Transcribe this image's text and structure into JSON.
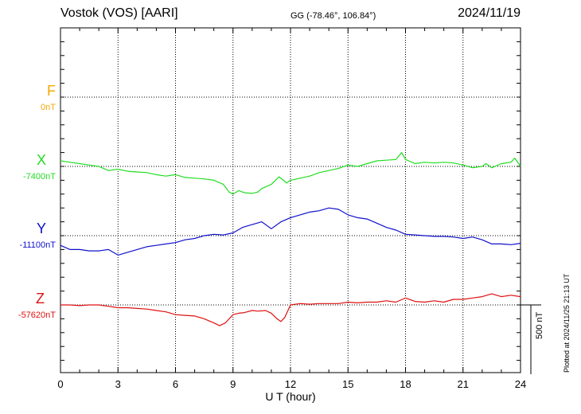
{
  "header": {
    "station": "Vostok (VOS)  [AARI]",
    "coordinates": "GG (-78.46°, 106.84°)",
    "date": "2024/11/19"
  },
  "plotted_note": "Plotted at 2024/11/25 21:13 UT",
  "chart_data": {
    "type": "line",
    "title": "Vostok (VOS)  [AARI]",
    "xlabel": "U T (hour)",
    "xlim": [
      0,
      24
    ],
    "xticks": [
      0,
      3,
      6,
      9,
      12,
      15,
      18,
      21,
      24
    ],
    "tick_labels": [
      "0",
      "3",
      "6",
      "9",
      "12",
      "15",
      "18",
      "21",
      "24"
    ],
    "scale_label": "500 nT",
    "scale_nT": 500,
    "grid": true,
    "series": [
      {
        "name": "F",
        "baseline_label": "0nT",
        "color": "#f5a800",
        "baseline_nT": 0,
        "x": [],
        "y": []
      },
      {
        "name": "X",
        "baseline_label": "-7400nT",
        "color": "#22dd22",
        "baseline_nT": -7400,
        "x": [
          0,
          0.5,
          1,
          1.5,
          2,
          2.5,
          3,
          3.5,
          4,
          4.5,
          5,
          5.5,
          6,
          6.5,
          7,
          7.5,
          8,
          8.5,
          8.8,
          9,
          9.3,
          9.6,
          10,
          10.3,
          10.5,
          11,
          11.4,
          11.8,
          12,
          12.5,
          13,
          13.5,
          14,
          14.5,
          15,
          15.5,
          16,
          16.5,
          17,
          17.5,
          17.8,
          18,
          18.5,
          19,
          19.5,
          20,
          20.5,
          21,
          21.5,
          22,
          22.2,
          22.5,
          23,
          23.5,
          23.7,
          24
        ],
        "y": [
          40,
          30,
          20,
          10,
          0,
          -30,
          -20,
          -35,
          -40,
          -45,
          -60,
          -70,
          -60,
          -80,
          -85,
          -90,
          -100,
          -130,
          -185,
          -200,
          -175,
          -190,
          -195,
          -185,
          -160,
          -130,
          -75,
          -120,
          -100,
          -85,
          -70,
          -45,
          -30,
          -15,
          10,
          0,
          20,
          40,
          45,
          50,
          100,
          50,
          20,
          30,
          25,
          30,
          25,
          10,
          -10,
          0,
          20,
          -10,
          20,
          30,
          60,
          0
        ],
        "y_units": "nT offset from baseline"
      },
      {
        "name": "Y",
        "baseline_label": "-11100nT",
        "color": "#1010cc",
        "baseline_nT": -11100,
        "x": [
          0,
          0.5,
          1,
          1.5,
          2,
          2.5,
          3,
          3.5,
          4,
          4.5,
          5,
          5.5,
          6,
          6.5,
          7,
          7.5,
          8,
          8.5,
          9,
          9.5,
          10,
          10.5,
          11,
          11.5,
          12,
          12.5,
          13,
          13.5,
          14,
          14.5,
          15,
          15.5,
          16,
          16.5,
          17,
          17.5,
          18,
          18.5,
          19,
          19.5,
          20,
          20.5,
          21,
          21.5,
          22,
          22.5,
          23,
          23.5,
          24
        ],
        "y": [
          -70,
          -100,
          -100,
          -110,
          -110,
          -100,
          -140,
          -120,
          -100,
          -80,
          -70,
          -60,
          -50,
          -30,
          -20,
          0,
          10,
          5,
          20,
          60,
          80,
          100,
          50,
          100,
          130,
          150,
          170,
          180,
          200,
          190,
          150,
          130,
          120,
          90,
          60,
          40,
          10,
          5,
          0,
          -5,
          -5,
          -10,
          -20,
          -10,
          -30,
          -60,
          -60,
          -65,
          -55
        ],
        "y_units": "nT offset from baseline"
      },
      {
        "name": "Z",
        "baseline_label": "-57620nT",
        "color": "#dd1111",
        "baseline_nT": -57620,
        "x": [
          0,
          0.5,
          1,
          1.5,
          2,
          2.5,
          3,
          3.5,
          4,
          4.5,
          5,
          5.5,
          6,
          6.5,
          7,
          7.5,
          8,
          8.3,
          8.6,
          9,
          9.3,
          9.6,
          10,
          10.3,
          10.7,
          11,
          11.3,
          11.5,
          11.7,
          12,
          12.5,
          13,
          13.5,
          14,
          14.5,
          15,
          15.5,
          16,
          16.5,
          17,
          17.5,
          18,
          18.5,
          19,
          19.5,
          20,
          20.5,
          21,
          21.5,
          22,
          22.5,
          23,
          23.5,
          24
        ],
        "y": [
          0,
          0,
          -5,
          0,
          0,
          -10,
          -20,
          -20,
          -25,
          -30,
          -40,
          -50,
          -70,
          -75,
          -80,
          -100,
          -130,
          -150,
          -130,
          -70,
          -60,
          -55,
          -40,
          -45,
          -40,
          -60,
          -100,
          -120,
          -90,
          0,
          10,
          5,
          10,
          10,
          10,
          20,
          15,
          20,
          20,
          30,
          20,
          50,
          25,
          20,
          30,
          20,
          40,
          40,
          50,
          60,
          80,
          60,
          70,
          60
        ],
        "y_units": "nT offset from baseline"
      }
    ]
  }
}
